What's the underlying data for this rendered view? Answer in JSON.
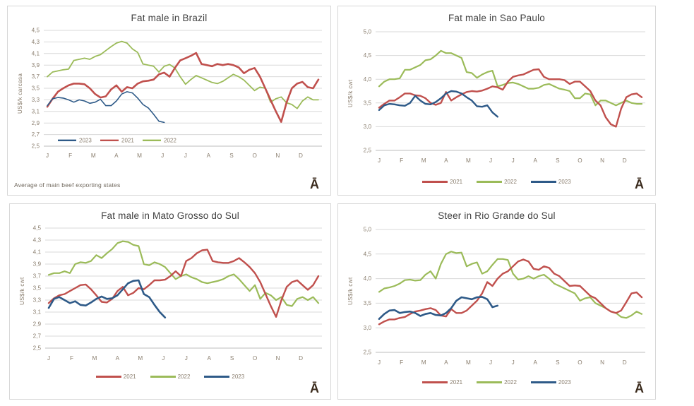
{
  "page": {
    "background": "#ffffff",
    "panel_border": "#d7d7d7"
  },
  "logo_glyph": "Ā",
  "styles": {
    "grid_color": "#d9d9d9",
    "axis_color": "#bdbdbd",
    "tick_color": "#8a7e6e",
    "title_color": "#404040",
    "caption_color": "#6f675c",
    "logo_color": "#3a2a1c",
    "series_colors": {
      "2021": "#c0504d",
      "2022": "#9bbb59",
      "2023": "#2e5a88"
    }
  },
  "chart_data": [
    {
      "type": "line",
      "title": "Fat male in Brazil",
      "ylabel": "US$/k carcasa",
      "caption": "Average  of main beef exporting states",
      "x_tick_labels": [
        "J",
        "F",
        "M",
        "A",
        "M",
        "J",
        "J",
        "A",
        "S",
        "O",
        "N",
        "D"
      ],
      "ylim": [
        2.5,
        4.5
      ],
      "ytick_step": 0.2,
      "ytick_labels": [
        "2,5",
        "2,7",
        "2,9",
        "3,1",
        "3,3",
        "3,5",
        "3,7",
        "3,9",
        "4,1",
        "4,3",
        "4,5"
      ],
      "grid": true,
      "legend": {
        "position": "inside-bottom-left",
        "entries": [
          "2023",
          "2021",
          "2022"
        ]
      },
      "series": [
        {
          "name": "2021",
          "color": "#c0504d",
          "width": 2.6,
          "values": [
            3.18,
            3.32,
            3.44,
            3.5,
            3.55,
            3.58,
            3.58,
            3.57,
            3.5,
            3.4,
            3.34,
            3.36,
            3.48,
            3.55,
            3.44,
            3.52,
            3.5,
            3.58,
            3.62,
            3.63,
            3.65,
            3.74,
            3.77,
            3.7,
            3.85,
            3.98,
            4.02,
            4.06,
            4.11,
            3.92,
            3.9,
            3.88,
            3.92,
            3.9,
            3.92,
            3.9,
            3.86,
            3.76,
            3.82,
            3.85,
            3.7,
            3.5,
            3.3,
            3.1,
            2.92,
            3.25,
            3.5,
            3.58,
            3.61,
            3.52,
            3.5,
            3.65
          ]
        },
        {
          "name": "2022",
          "color": "#9bbb59",
          "width": 1.8,
          "values": [
            3.7,
            3.78,
            3.8,
            3.82,
            3.83,
            3.98,
            4.0,
            4.02,
            4.0,
            4.05,
            4.08,
            4.15,
            4.22,
            4.28,
            4.31,
            4.28,
            4.18,
            4.12,
            3.92,
            3.9,
            3.88,
            3.78,
            3.88,
            3.91,
            3.85,
            3.7,
            3.57,
            3.65,
            3.72,
            3.68,
            3.64,
            3.6,
            3.58,
            3.62,
            3.68,
            3.74,
            3.7,
            3.64,
            3.55,
            3.46,
            3.52,
            3.5,
            3.26,
            3.32,
            3.35,
            3.25,
            3.22,
            3.15,
            3.28,
            3.35,
            3.3,
            3.3
          ]
        },
        {
          "name": "2023",
          "color": "#2e5a88",
          "width": 1.6,
          "values": [
            3.2,
            3.32,
            3.34,
            3.33,
            3.3,
            3.26,
            3.3,
            3.28,
            3.24,
            3.26,
            3.31,
            3.2,
            3.2,
            3.28,
            3.4,
            3.44,
            3.42,
            3.33,
            3.22,
            3.16,
            3.05,
            2.93,
            2.91
          ]
        }
      ]
    },
    {
      "type": "line",
      "title": "Fat male in Sao Paulo",
      "ylabel": "US$/k cwt",
      "x_tick_labels": [
        "J",
        "F",
        "M",
        "A",
        "M",
        "J",
        "J",
        "A",
        "S",
        "O",
        "N",
        "D"
      ],
      "ylim": [
        2.5,
        5.0
      ],
      "ytick_step": 0.5,
      "ytick_labels": [
        "2,5",
        "3,0",
        "3,5",
        "4,0",
        "4,5",
        "5,0"
      ],
      "grid": true,
      "legend": {
        "position": "below-center",
        "entries": [
          "2021",
          "2022",
          "2023"
        ]
      },
      "series": [
        {
          "name": "2021",
          "color": "#c0504d",
          "width": 2.4,
          "values": [
            3.4,
            3.48,
            3.55,
            3.55,
            3.62,
            3.7,
            3.7,
            3.66,
            3.65,
            3.6,
            3.5,
            3.46,
            3.5,
            3.73,
            3.55,
            3.62,
            3.68,
            3.73,
            3.75,
            3.74,
            3.76,
            3.8,
            3.85,
            3.83,
            3.78,
            3.95,
            4.05,
            4.08,
            4.1,
            4.15,
            4.2,
            4.21,
            4.05,
            4.0,
            4.0,
            4.0,
            3.98,
            3.9,
            3.95,
            3.95,
            3.85,
            3.75,
            3.55,
            3.45,
            3.2,
            3.05,
            3.0,
            3.38,
            3.62,
            3.68,
            3.7,
            3.62
          ]
        },
        {
          "name": "2022",
          "color": "#9bbb59",
          "width": 2.2,
          "values": [
            3.85,
            3.95,
            4.0,
            4.0,
            4.02,
            4.2,
            4.2,
            4.25,
            4.3,
            4.4,
            4.42,
            4.5,
            4.6,
            4.55,
            4.55,
            4.5,
            4.45,
            4.15,
            4.13,
            4.03,
            4.1,
            4.15,
            4.18,
            3.85,
            3.88,
            3.92,
            3.93,
            3.9,
            3.85,
            3.8,
            3.8,
            3.82,
            3.88,
            3.9,
            3.85,
            3.8,
            3.78,
            3.75,
            3.6,
            3.6,
            3.7,
            3.68,
            3.45,
            3.55,
            3.55,
            3.5,
            3.45,
            3.5,
            3.55,
            3.5,
            3.48,
            3.48
          ]
        },
        {
          "name": "2023",
          "color": "#2e5a88",
          "width": 2.4,
          "values": [
            3.35,
            3.45,
            3.48,
            3.47,
            3.45,
            3.44,
            3.5,
            3.65,
            3.55,
            3.48,
            3.47,
            3.52,
            3.6,
            3.7,
            3.75,
            3.74,
            3.7,
            3.62,
            3.55,
            3.43,
            3.42,
            3.45,
            3.3,
            3.21
          ]
        }
      ]
    },
    {
      "type": "line",
      "title": "Fat male in Mato Grosso do Sul",
      "ylabel": "US$/k cwt",
      "x_tick_labels": [
        "J",
        "F",
        "M",
        "A",
        "M",
        "J",
        "J",
        "A",
        "S",
        "O",
        "N",
        "D"
      ],
      "ylim": [
        2.5,
        4.5
      ],
      "ytick_step": 0.2,
      "ytick_labels": [
        "2,5",
        "2,7",
        "2,9",
        "3,1",
        "3,3",
        "3,5",
        "3,7",
        "3,9",
        "4,1",
        "4,3",
        "4,5"
      ],
      "grid": true,
      "legend": {
        "position": "below-center",
        "entries": [
          "2021",
          "2022",
          "2023"
        ]
      },
      "series": [
        {
          "name": "2021",
          "color": "#c0504d",
          "width": 2.4,
          "values": [
            3.25,
            3.33,
            3.38,
            3.4,
            3.45,
            3.5,
            3.55,
            3.56,
            3.48,
            3.38,
            3.27,
            3.26,
            3.32,
            3.45,
            3.52,
            3.38,
            3.42,
            3.5,
            3.48,
            3.55,
            3.63,
            3.63,
            3.64,
            3.7,
            3.78,
            3.7,
            3.95,
            4.0,
            4.08,
            4.13,
            4.14,
            3.95,
            3.93,
            3.92,
            3.92,
            3.95,
            4.0,
            3.93,
            3.85,
            3.75,
            3.6,
            3.4,
            3.2,
            3.02,
            3.3,
            3.52,
            3.6,
            3.63,
            3.55,
            3.47,
            3.55,
            3.7
          ]
        },
        {
          "name": "2022",
          "color": "#9bbb59",
          "width": 2.2,
          "values": [
            3.72,
            3.75,
            3.75,
            3.78,
            3.75,
            3.9,
            3.93,
            3.92,
            3.95,
            4.05,
            4.0,
            4.08,
            4.15,
            4.25,
            4.28,
            4.27,
            4.22,
            4.2,
            3.9,
            3.88,
            3.93,
            3.9,
            3.85,
            3.75,
            3.65,
            3.7,
            3.73,
            3.68,
            3.65,
            3.6,
            3.58,
            3.6,
            3.62,
            3.65,
            3.7,
            3.73,
            3.65,
            3.55,
            3.45,
            3.55,
            3.32,
            3.42,
            3.38,
            3.3,
            3.35,
            3.22,
            3.2,
            3.32,
            3.35,
            3.3,
            3.35,
            3.25
          ]
        },
        {
          "name": "2023",
          "color": "#2e5a88",
          "width": 2.6,
          "values": [
            3.17,
            3.32,
            3.35,
            3.3,
            3.25,
            3.28,
            3.22,
            3.21,
            3.26,
            3.32,
            3.36,
            3.32,
            3.33,
            3.38,
            3.48,
            3.58,
            3.62,
            3.63,
            3.4,
            3.35,
            3.22,
            3.1,
            3.01
          ]
        }
      ]
    },
    {
      "type": "line",
      "title": "Steer  in Rio Grande do Sul",
      "ylabel": "US$/k cwt",
      "x_tick_labels": [
        "J",
        "F",
        "M",
        "A",
        "M",
        "J",
        "J",
        "A",
        "S",
        "O",
        "N",
        "D"
      ],
      "ylim": [
        2.5,
        5.0
      ],
      "ytick_step": 0.5,
      "ytick_labels": [
        "2,5",
        "3,0",
        "3,5",
        "4,0",
        "4,5",
        "5,0"
      ],
      "grid": true,
      "legend": {
        "position": "below-center",
        "entries": [
          "2021",
          "2022",
          "2023"
        ]
      },
      "series": [
        {
          "name": "2021",
          "color": "#c0504d",
          "width": 2.4,
          "values": [
            3.07,
            3.13,
            3.17,
            3.17,
            3.2,
            3.22,
            3.28,
            3.33,
            3.35,
            3.38,
            3.4,
            3.36,
            3.25,
            3.23,
            3.38,
            3.3,
            3.3,
            3.35,
            3.45,
            3.55,
            3.7,
            3.93,
            3.85,
            4.0,
            4.1,
            4.15,
            4.25,
            4.35,
            4.39,
            4.35,
            4.2,
            4.18,
            4.25,
            4.22,
            4.1,
            4.05,
            3.95,
            3.85,
            3.86,
            3.85,
            3.75,
            3.65,
            3.6,
            3.5,
            3.4,
            3.33,
            3.3,
            3.35,
            3.52,
            3.7,
            3.72,
            3.62
          ]
        },
        {
          "name": "2022",
          "color": "#9bbb59",
          "width": 2.2,
          "values": [
            3.73,
            3.8,
            3.82,
            3.85,
            3.9,
            3.97,
            3.98,
            3.96,
            3.97,
            4.08,
            4.15,
            4.0,
            4.3,
            4.5,
            4.55,
            4.52,
            4.53,
            4.25,
            4.3,
            4.33,
            4.1,
            4.15,
            4.28,
            4.4,
            4.4,
            4.38,
            4.1,
            3.98,
            4.0,
            4.05,
            4.0,
            4.05,
            4.08,
            4.0,
            3.9,
            3.85,
            3.8,
            3.75,
            3.7,
            3.55,
            3.6,
            3.62,
            3.5,
            3.45,
            3.4,
            3.33,
            3.3,
            3.22,
            3.2,
            3.25,
            3.33,
            3.28
          ]
        },
        {
          "name": "2023",
          "color": "#2e5a88",
          "width": 2.6,
          "values": [
            3.18,
            3.28,
            3.35,
            3.36,
            3.3,
            3.32,
            3.33,
            3.3,
            3.24,
            3.28,
            3.3,
            3.26,
            3.25,
            3.3,
            3.4,
            3.55,
            3.62,
            3.6,
            3.58,
            3.62,
            3.63,
            3.58,
            3.42,
            3.45
          ]
        }
      ]
    }
  ]
}
